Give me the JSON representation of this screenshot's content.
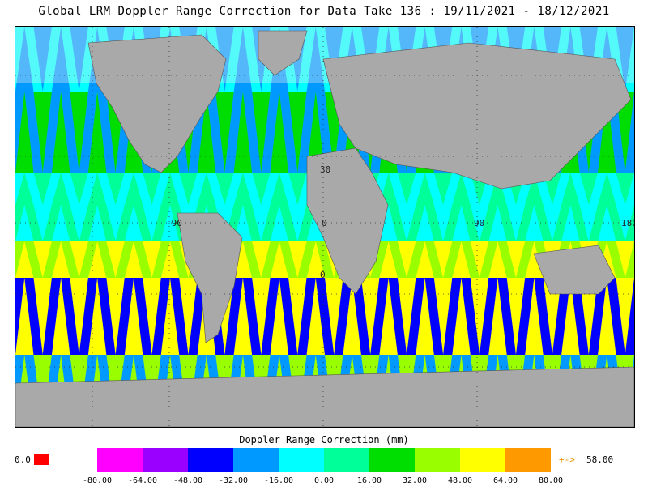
{
  "title": "Global LRM Doppler Range Correction for Data Take 136 : 19/11/2021 - 18/12/2021",
  "map": {
    "lon_labels": [
      "-90",
      "0",
      "90",
      "180"
    ],
    "lat_labels": [
      "30",
      "0"
    ],
    "land_color": "#a9a9a9",
    "nodata_color": "#f2f2f2"
  },
  "colorbar": {
    "title": "Doppler Range Correction (mm)",
    "colors": [
      "#ff00ff",
      "#9900ff",
      "#0000ff",
      "#0099ff",
      "#00ffff",
      "#00ff99",
      "#00dd00",
      "#99ff00",
      "#ffff00",
      "#ff9900"
    ],
    "ticks": [
      "-80.00",
      "-64.00",
      "-48.00",
      "-32.00",
      "-16.00",
      "0.00",
      "16.00",
      "32.00",
      "48.00",
      "64.00",
      "80.00"
    ],
    "below_label": "0.0",
    "below_color": "#ff0000",
    "above_arrow": "+->",
    "above_label": "58.00"
  }
}
